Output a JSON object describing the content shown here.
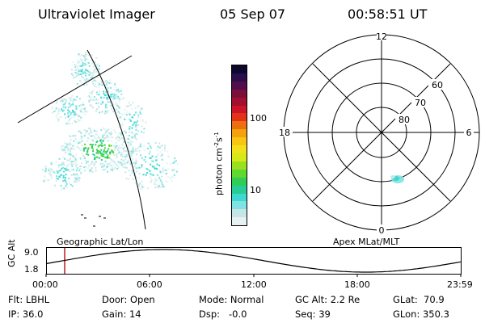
{
  "header": {
    "instrument": "Ultraviolet Imager",
    "date": "05 Sep 07",
    "time": "00:58:51 UT"
  },
  "colorbar": {
    "label": "photon cm",
    "label_exp1": "-2",
    "label_mid": "s",
    "label_exp2": "-1",
    "ticks": [
      "100",
      "10"
    ],
    "colors": [
      "#e6f2f2",
      "#c6e6e6",
      "#7fe3e3",
      "#3fd8d0",
      "#27cc99",
      "#2fcd55",
      "#5fd830",
      "#9be01e",
      "#d4e81a",
      "#f2e11a",
      "#f7c612",
      "#f4a10c",
      "#ee6f0d",
      "#e3321a",
      "#cc1428",
      "#a20f2f",
      "#7a0f3a",
      "#4e0f4a",
      "#2a0d4a",
      "#0d0730"
    ]
  },
  "geo_panel": {
    "title": "Geographic Lat/Lon"
  },
  "polar_panel": {
    "title": "Apex MLat/MLT",
    "mlt_labels": {
      "top": "12",
      "left": "18",
      "right": "6",
      "bottom": "0"
    },
    "lat_labels": [
      "60",
      "70",
      "80"
    ]
  },
  "orbit_panel": {
    "ylabel": "GC Alt",
    "yticks": [
      "9.0",
      "1.8"
    ],
    "xticks": [
      "00:00",
      "06:00",
      "12:00",
      "18:00",
      "23:59"
    ]
  },
  "info": {
    "col1": [
      "Flt: LBHL",
      "IP: 36.0"
    ],
    "col2": [
      "Door: Open",
      "Gain: 14"
    ],
    "col3": [
      "Mode: Normal",
      "Dsp:   -0.0"
    ],
    "col4": [
      "GC Alt: 2.2 Re",
      "Seq: 39"
    ],
    "col5": [
      "GLat:  70.9",
      "GLon: 350.3"
    ]
  }
}
